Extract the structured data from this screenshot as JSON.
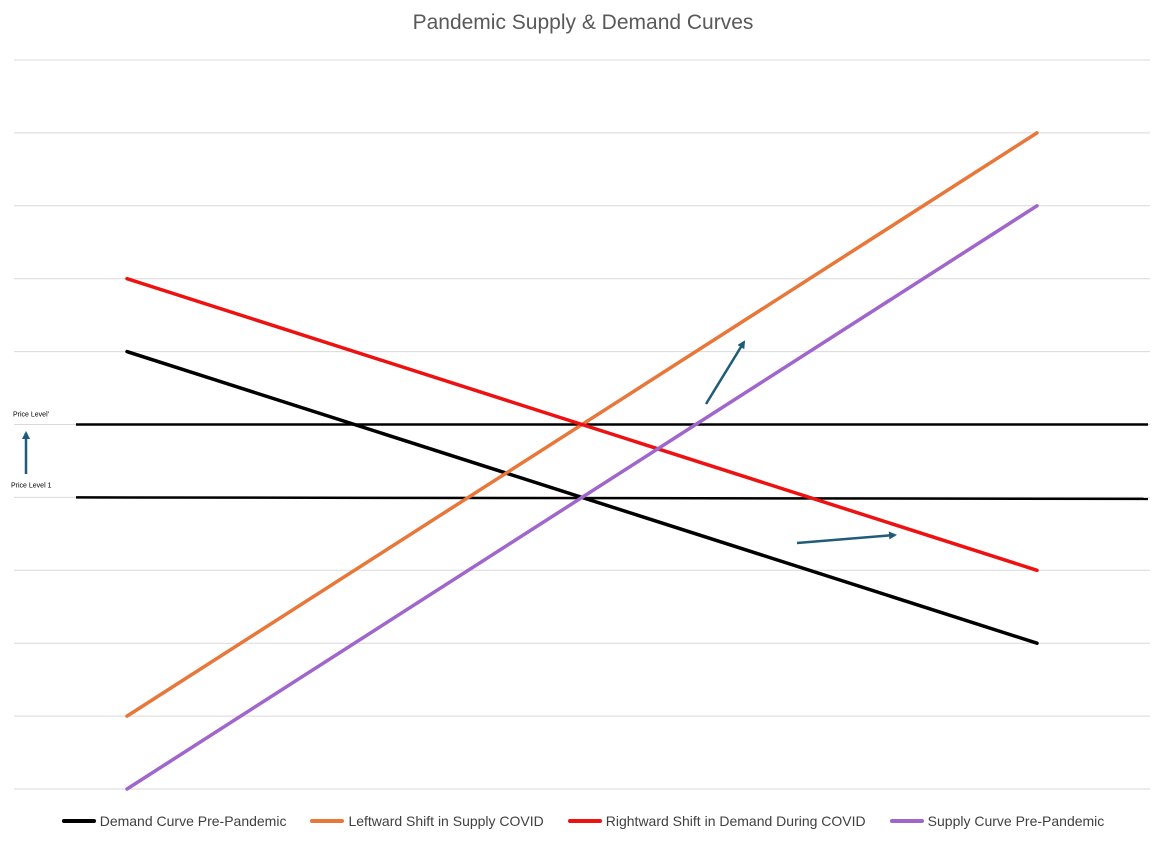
{
  "chart_data": {
    "type": "line",
    "title": "Pandemic Supply & Demand Curves",
    "xlabel": "",
    "ylabel": "",
    "xlim": [
      1,
      9
    ],
    "ylim": [
      0,
      10
    ],
    "y_gridlines": [
      0,
      1,
      2,
      3,
      4,
      5,
      6,
      7,
      8,
      9,
      10
    ],
    "grid": "horizontal",
    "legend_position": "bottom",
    "series": [
      {
        "name": "Demand Curve Pre-Pandemic",
        "color": "#000000",
        "x": [
          1,
          9
        ],
        "y": [
          6,
          2
        ]
      },
      {
        "name": "Leftward Shift in Supply COVID",
        "color": "#E8773A",
        "x": [
          1,
          9
        ],
        "y": [
          1,
          9
        ]
      },
      {
        "name": "Rightward Shift in Demand During COVID",
        "color": "#EE1111",
        "x": [
          1,
          9
        ],
        "y": [
          7,
          3
        ]
      },
      {
        "name": "Supply Curve Pre-Pandemic",
        "color": "#A066CC",
        "x": [
          1,
          9
        ],
        "y": [
          0,
          8
        ]
      }
    ],
    "reference_lines": [
      {
        "label": "Price Level'",
        "y": 5
      },
      {
        "label": "Price Level 1",
        "y": 4
      }
    ],
    "annotation_arrows": [
      {
        "name": "supply-shift-arrow",
        "from": [
          6.1,
          5.25
        ],
        "to": [
          6.45,
          6.1
        ],
        "color": "#1F5C7A"
      },
      {
        "name": "demand-shift-arrow",
        "from": [
          6.9,
          3.35
        ],
        "to": [
          7.75,
          3.5
        ],
        "color": "#1F5C7A"
      },
      {
        "name": "price-rise-arrow",
        "from": [
          0.1,
          4.25
        ],
        "to": [
          0.1,
          4.9
        ],
        "color": "#1F5C7A"
      }
    ]
  }
}
